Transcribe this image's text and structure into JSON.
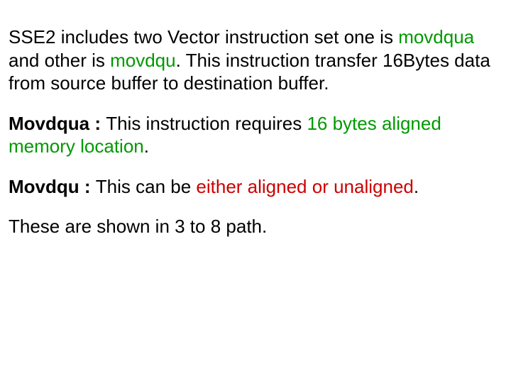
{
  "colors": {
    "green": "#009900",
    "red": "#cc0000",
    "black": "#000000",
    "background": "#ffffff"
  },
  "typography": {
    "font_family": "Arial",
    "body_fontsize": 26,
    "heading_weight": "bold"
  },
  "para1": {
    "text_black1": "SSE2 includes two Vector instruction set one is ",
    "text_green1": "movdqua",
    "text_black2": " and other is ",
    "text_green2": "movdqu",
    "text_black3": ". This instruction transfer 16Bytes data from source buffer to destination buffer."
  },
  "para2": {
    "heading": "Movdqua : ",
    "text_black": "This instruction requires ",
    "text_green": "16 bytes aligned memory location",
    "text_black2": "."
  },
  "para3": {
    "heading": "Movdqu : ",
    "text_black": "This can be ",
    "text_red": "either aligned or unaligned",
    "text_black2": "."
  },
  "para4": {
    "text": "These are shown in 3 to 8 path."
  }
}
